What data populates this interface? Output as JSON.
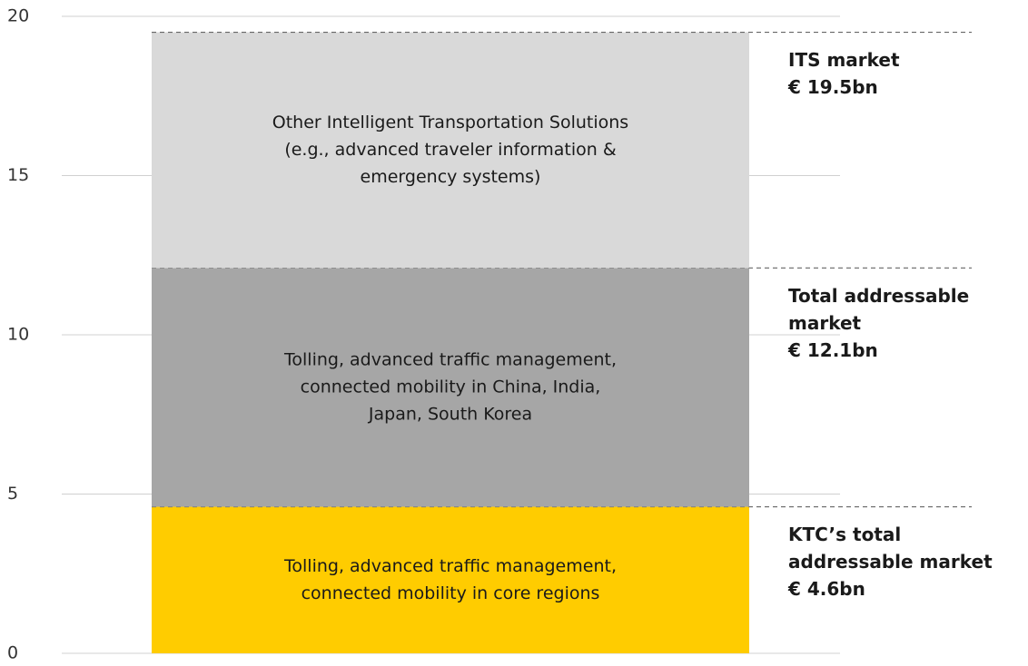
{
  "chart_data": {
    "type": "stacked_bar",
    "categories": [
      null
    ],
    "series": [
      {
        "name": [
          "Tolling, advanced traffic management,",
          "connected mobility  in core regions"
        ],
        "color": "#ffcc00",
        "values": [
          4.6
        ]
      },
      {
        "name": [
          "Tolling, advanced traffic management,",
          "connected mobility  in China, India,",
          "Japan, South Korea"
        ],
        "color": "#a6a6a6",
        "values": [
          7.5
        ]
      },
      {
        "name": [
          "Other Intelligent  Transportation Solutions",
          "(e.g., advanced traveler information &",
          "emergency systems)"
        ],
        "color": "#d9d9d9",
        "values": [
          7.4
        ]
      }
    ],
    "annotations": [
      [
        "KTC’s total",
        "addressable market",
        "€ 4.6bn"
      ],
      [
        "Total addressable",
        "market",
        "€ 12.1bn"
      ],
      [
        "ITS market",
        "€ 19.5bn"
      ]
    ],
    "ylim": [
      0,
      20
    ],
    "yticks": [
      0,
      5,
      10,
      15,
      20
    ],
    "grid": true
  }
}
